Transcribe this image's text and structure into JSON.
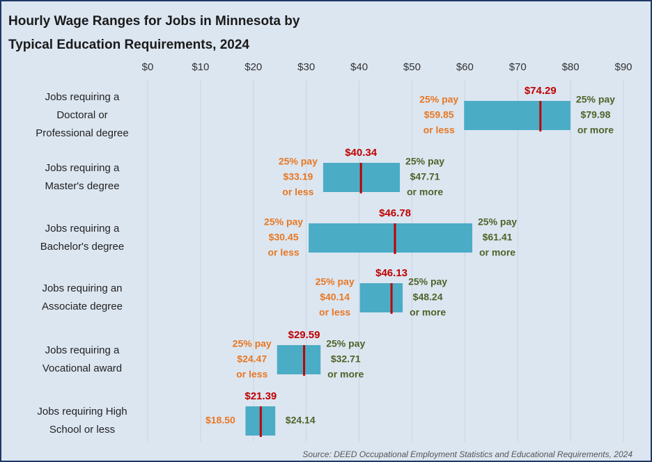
{
  "chart_data": {
    "type": "range_bar",
    "title": [
      "Hourly Wage Ranges for Jobs in Minnesota by",
      "Typical Education Requirements, 2024"
    ],
    "source": "Source: DEED Occupational Employment Statistics and Educational Requirements, 2024",
    "categories": [
      [
        "Jobs requiring a",
        "Doctoral or",
        "Professional degree"
      ],
      [
        "Jobs requiring a",
        "Master's degree"
      ],
      [
        "Jobs requiring a",
        "Bachelor's degree"
      ],
      [
        "Jobs requiring an",
        "Associate degree"
      ],
      [
        "Jobs requiring a",
        "Vocational award"
      ],
      [
        "Jobs requiring High",
        "School or less"
      ]
    ],
    "low": {
      "values": [
        59.85,
        33.19,
        30.45,
        40.14,
        24.47,
        18.5
      ],
      "value_labels": [
        "$59.85",
        "$33.19",
        "$30.45",
        "$40.14",
        "$24.47",
        "$18.50"
      ],
      "color": "#e87722"
    },
    "median": {
      "values": [
        74.29,
        40.34,
        46.78,
        46.13,
        29.59,
        21.39
      ],
      "value_labels": [
        "$74.29",
        "$40.34",
        "$46.78",
        "$46.13",
        "$29.59",
        "$21.39"
      ],
      "color": "#c00000"
    },
    "high": {
      "values": [
        79.98,
        47.71,
        61.41,
        48.24,
        32.71,
        24.14
      ],
      "value_labels": [
        "$79.98",
        "$47.71",
        "$61.41",
        "$48.24",
        "$32.71",
        "$24.14"
      ],
      "color": "#4f6228"
    },
    "low_notes": [
      {
        "above": "25% pay",
        "below": "or less"
      },
      {
        "above": "25% pay",
        "below": "or less"
      },
      {
        "above": "25% pay",
        "below": "or less"
      },
      {
        "above": "25% pay",
        "below": "or less"
      },
      {
        "above": "25% pay",
        "below": "or less"
      },
      null
    ],
    "high_notes": [
      {
        "above": "25% pay",
        "below": "or more"
      },
      {
        "above": "25% pay",
        "below": "or more"
      },
      {
        "above": "25% pay",
        "below": "or more"
      },
      {
        "above": "25% pay",
        "below": "or more"
      },
      {
        "above": "25% pay",
        "below": "or more"
      },
      null
    ],
    "bar_color": "#4bacc6",
    "xlim": [
      0,
      90
    ],
    "xticks": [
      {
        "value": 0,
        "label": "$0"
      },
      {
        "value": 10,
        "label": "$10"
      },
      {
        "value": 20,
        "label": "$20"
      },
      {
        "value": 30,
        "label": "$30"
      },
      {
        "value": 40,
        "label": "$40"
      },
      {
        "value": 50,
        "label": "$50"
      },
      {
        "value": 60,
        "label": "$60"
      },
      {
        "value": 70,
        "label": "$70"
      },
      {
        "value": 80,
        "label": "$80"
      },
      {
        "value": 90,
        "label": "$90"
      }
    ],
    "grid": true
  }
}
